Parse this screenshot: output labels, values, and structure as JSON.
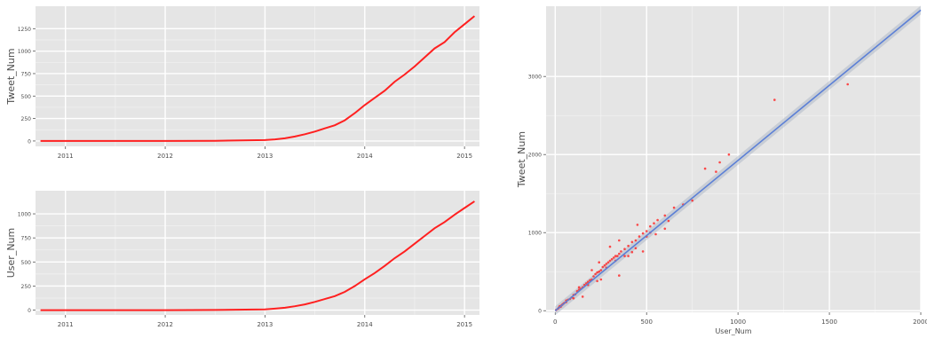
{
  "chart_data": [
    {
      "type": "line",
      "ylabel": "Tweet_Num",
      "xlabel": "",
      "x_ticks": [
        "2011",
        "2012",
        "2013",
        "2014",
        "2015"
      ],
      "xlim": [
        2010.7,
        2015.15
      ],
      "ylim": [
        -60,
        1500
      ],
      "y_ticks": [
        0,
        250,
        500,
        750,
        1000,
        1250
      ],
      "grid": true,
      "series": [
        {
          "color": "#ff2020",
          "x": [
            2010.75,
            2011.0,
            2011.5,
            2012.0,
            2012.5,
            2013.0,
            2013.1,
            2013.2,
            2013.3,
            2013.4,
            2013.5,
            2013.6,
            2013.7,
            2013.8,
            2013.9,
            2014.0,
            2014.1,
            2014.2,
            2014.3,
            2014.4,
            2014.5,
            2014.6,
            2014.7,
            2014.8,
            2014.9,
            2015.0,
            2015.1
          ],
          "y": [
            0,
            0,
            0,
            0,
            2,
            10,
            18,
            30,
            50,
            75,
            105,
            140,
            175,
            230,
            310,
            400,
            480,
            560,
            660,
            740,
            830,
            930,
            1030,
            1100,
            1210,
            1300,
            1390
          ]
        }
      ]
    },
    {
      "type": "line",
      "ylabel": "User_Num",
      "xlabel": "",
      "x_ticks": [
        "2011",
        "2012",
        "2013",
        "2014",
        "2015"
      ],
      "xlim": [
        2010.7,
        2015.15
      ],
      "ylim": [
        -50,
        1240
      ],
      "y_ticks": [
        0,
        250,
        500,
        750,
        1000
      ],
      "grid": true,
      "series": [
        {
          "color": "#ff2020",
          "x": [
            2010.75,
            2011.0,
            2011.5,
            2012.0,
            2012.5,
            2013.0,
            2013.1,
            2013.2,
            2013.3,
            2013.4,
            2013.5,
            2013.6,
            2013.7,
            2013.8,
            2013.9,
            2014.0,
            2014.1,
            2014.2,
            2014.3,
            2014.4,
            2014.5,
            2014.6,
            2014.7,
            2014.8,
            2014.9,
            2015.0,
            2015.1
          ],
          "y": [
            0,
            0,
            0,
            0,
            2,
            8,
            15,
            25,
            40,
            60,
            85,
            115,
            145,
            190,
            250,
            320,
            385,
            460,
            540,
            610,
            690,
            770,
            850,
            915,
            990,
            1060,
            1130
          ]
        }
      ]
    },
    {
      "type": "scatter",
      "xlabel": "User_Num",
      "ylabel": "Tweet_Num",
      "xlim": [
        -50,
        2000
      ],
      "ylim": [
        -20,
        3900
      ],
      "x_ticks": [
        0,
        500,
        1000,
        1500,
        2000
      ],
      "y_ticks": [
        0,
        1000,
        2000,
        3000
      ],
      "grid": true,
      "fit_line": {
        "color": "#5b7fd6",
        "band_color": "#b0bac8",
        "x": [
          0,
          2000
        ],
        "y": [
          0,
          3850
        ]
      },
      "series": [
        {
          "color": "#ff2020",
          "points": [
            [
              5,
              10
            ],
            [
              15,
              25
            ],
            [
              20,
              40
            ],
            [
              30,
              50
            ],
            [
              35,
              70
            ],
            [
              45,
              90
            ],
            [
              50,
              100
            ],
            [
              60,
              110
            ],
            [
              70,
              140
            ],
            [
              80,
              150
            ],
            [
              90,
              170
            ],
            [
              100,
              200
            ],
            [
              110,
              210
            ],
            [
              120,
              250
            ],
            [
              130,
              270
            ],
            [
              140,
              280
            ],
            [
              150,
              300
            ],
            [
              160,
              330
            ],
            [
              170,
              350
            ],
            [
              180,
              370
            ],
            [
              190,
              390
            ],
            [
              200,
              400
            ],
            [
              210,
              440
            ],
            [
              220,
              470
            ],
            [
              230,
              490
            ],
            [
              240,
              500
            ],
            [
              250,
              520
            ],
            [
              260,
              560
            ],
            [
              270,
              580
            ],
            [
              280,
              600
            ],
            [
              290,
              620
            ],
            [
              300,
              640
            ],
            [
              310,
              660
            ],
            [
              320,
              680
            ],
            [
              330,
              700
            ],
            [
              340,
              700
            ],
            [
              350,
              730
            ],
            [
              360,
              760
            ],
            [
              380,
              790
            ],
            [
              400,
              830
            ],
            [
              420,
              880
            ],
            [
              440,
              900
            ],
            [
              460,
              950
            ],
            [
              480,
              990
            ],
            [
              500,
              1020
            ],
            [
              520,
              1080
            ],
            [
              540,
              1120
            ],
            [
              560,
              1160
            ],
            [
              600,
              1220
            ],
            [
              650,
              1320
            ],
            [
              700,
              1360
            ],
            [
              750,
              1410
            ],
            [
              820,
              1820
            ],
            [
              880,
              1780
            ],
            [
              900,
              1900
            ],
            [
              950,
              2000
            ],
            [
              1200,
              2700
            ],
            [
              1600,
              2900
            ],
            [
              150,
              180
            ],
            [
              250,
              400
            ],
            [
              350,
              450
            ],
            [
              400,
              700
            ],
            [
              450,
              1100
            ],
            [
              480,
              760
            ],
            [
              500,
              950
            ],
            [
              550,
              980
            ],
            [
              600,
              1050
            ],
            [
              300,
              820
            ],
            [
              200,
              520
            ],
            [
              100,
              160
            ],
            [
              60,
              130
            ],
            [
              40,
              80
            ],
            [
              25,
              60
            ],
            [
              350,
              900
            ],
            [
              420,
              750
            ],
            [
              280,
              550
            ],
            [
              230,
              380
            ],
            [
              180,
              330
            ],
            [
              130,
              300
            ],
            [
              240,
              620
            ],
            [
              330,
              640
            ],
            [
              380,
              700
            ],
            [
              440,
              800
            ],
            [
              520,
              1000
            ],
            [
              620,
              1150
            ]
          ]
        }
      ]
    }
  ]
}
